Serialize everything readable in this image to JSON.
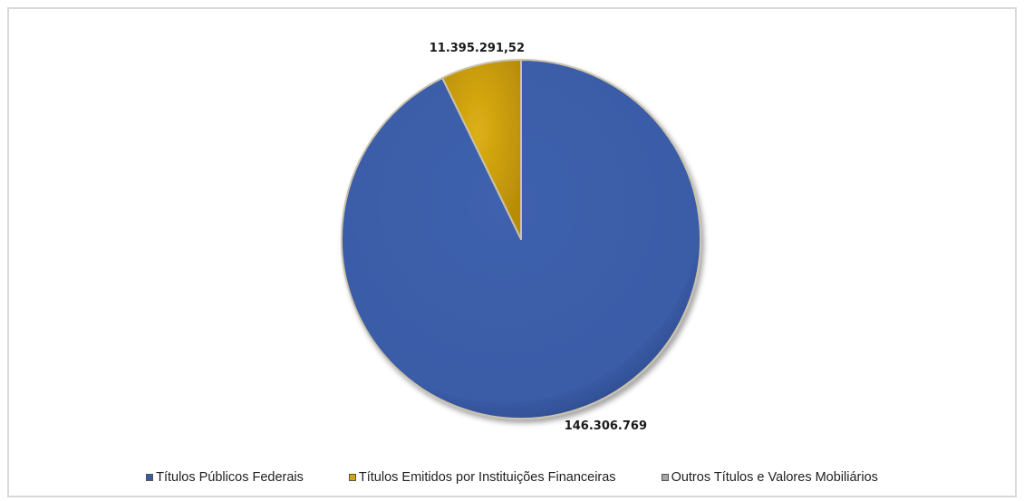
{
  "chart_data": {
    "type": "pie",
    "title": "",
    "slices": [
      {
        "label": "Títulos Públicos Federais",
        "value": 146306769,
        "display": "146.306.769",
        "color": "#3a5ba6"
      },
      {
        "label": "Títulos Emitidos por Instituições Financeiras",
        "value": 11395291.52,
        "display": "11.395.291,52",
        "color": "#d4a50a"
      },
      {
        "label": "Outros Títulos e Valores Mobiliários",
        "value": 0,
        "display": "",
        "color": "#a6a6a6"
      }
    ],
    "legend_position": "bottom",
    "start_angle_deg": 0,
    "direction": "clockwise"
  }
}
